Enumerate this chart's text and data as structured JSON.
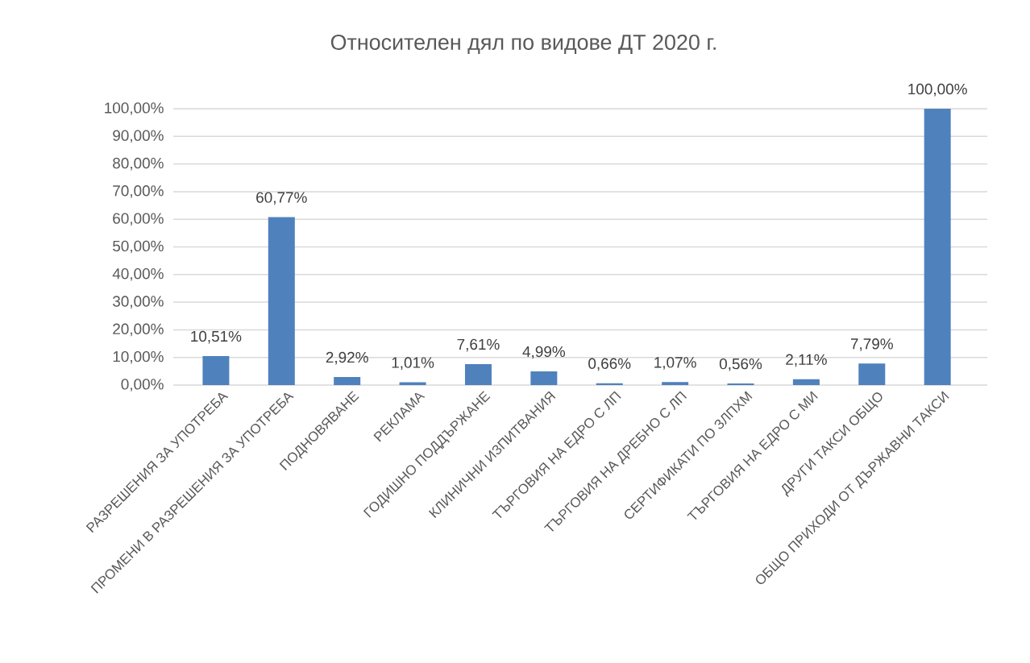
{
  "chart_data": {
    "type": "bar",
    "title": "Относителен дял по видове ДТ 2020 г.",
    "categories": [
      "РАЗРЕШЕНИЯ ЗА УПОТРЕБА",
      "ПРОМЕНИ В РАЗРЕШЕНИЯ ЗА УПОТРЕБА",
      "ПОДНОВЯВАНЕ",
      "РЕКЛАМА",
      "ГОДИШНО ПОДДЪРЖАНЕ",
      "КЛИНИЧНИ ИЗПИТВАНИЯ",
      "ТЪРГОВИЯ НА ЕДРО С ЛП",
      "ТЪРГОВИЯ НА ДРЕБНО С ЛП",
      "СЕРТИФИКАТИ ПО ЗЛПХМ",
      "ТЪРГОВИЯ НА ЕДРО С МИ",
      "ДРУГИ ТАКСИ ОБЩО",
      "ОБЩО ПРИХОДИ ОТ ДЪРЖАВНИ ТАКСИ"
    ],
    "values": [
      10.51,
      60.77,
      2.92,
      1.01,
      7.61,
      4.99,
      0.66,
      1.07,
      0.56,
      2.11,
      7.79,
      100
    ],
    "value_labels": [
      "10,51%",
      "60,77%",
      "2,92%",
      "1,01%",
      "7,61%",
      "4,99%",
      "0,66%",
      "1,07%",
      "0,56%",
      "2,11%",
      "7,79%",
      "100,00%"
    ],
    "color": "#4f81bd",
    "ylim": [
      0,
      100
    ],
    "yticks": [
      {
        "value": 0,
        "label": "0,00%"
      },
      {
        "value": 10,
        "label": "10,00%"
      },
      {
        "value": 20,
        "label": "20,00%"
      },
      {
        "value": 30,
        "label": "30,00%"
      },
      {
        "value": 40,
        "label": "40,00%"
      },
      {
        "value": 50,
        "label": "50,00%"
      },
      {
        "value": 60,
        "label": "60,00%"
      },
      {
        "value": 70,
        "label": "70,00%"
      },
      {
        "value": 80,
        "label": "80,00%"
      },
      {
        "value": 90,
        "label": "90,00%"
      },
      {
        "value": 100,
        "label": "100,00%"
      }
    ],
    "grid": "y"
  }
}
